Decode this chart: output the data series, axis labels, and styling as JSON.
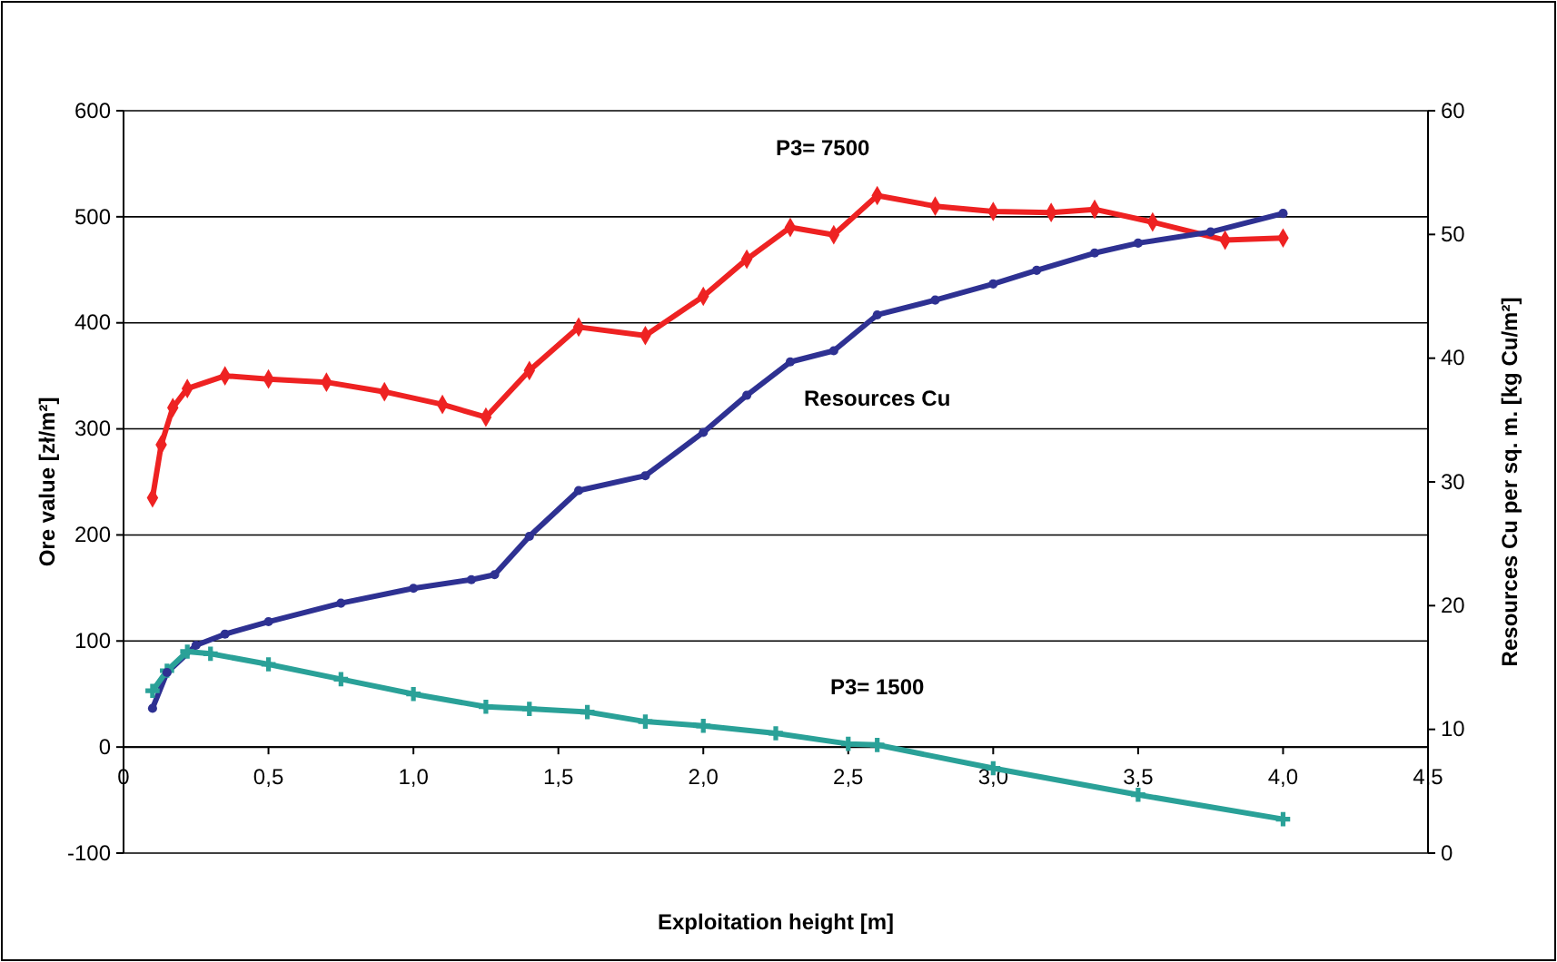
{
  "chart_data": {
    "type": "line",
    "xlabel": "Exploitation height [m]",
    "ylabel": "Ore value [zł/m²]",
    "y2label": "Resources Cu per sq. m. [kg Cu/m²]",
    "xlim": [
      0,
      4.5
    ],
    "xticks": [
      0,
      {
        "value": 0.5,
        "label": "0,5"
      },
      {
        "value": 1,
        "label": "1,0"
      },
      {
        "value": 1.5,
        "label": "1,5"
      },
      {
        "value": 2,
        "label": "2,0"
      },
      {
        "value": 2.5,
        "label": "2,5"
      },
      {
        "value": 3,
        "label": "3,0"
      },
      {
        "value": 3.5,
        "label": "3,5"
      },
      {
        "value": 4,
        "label": "4,0"
      },
      {
        "value": 4.5,
        "label": "4,5"
      }
    ],
    "ylim": [
      -100,
      600
    ],
    "yticks": [
      -100,
      0,
      100,
      200,
      300,
      400,
      500,
      600
    ],
    "y2lim": [
      0,
      60
    ],
    "y2ticks": [
      0,
      10,
      20,
      30,
      40,
      50,
      60
    ],
    "grid": "y",
    "series": [
      {
        "name": "P3= 7500",
        "color": "#ee2222",
        "marker": "diamond",
        "x": [
          0.1,
          0.13,
          0.17,
          0.22,
          0.35,
          0.5,
          0.7,
          0.9,
          1.1,
          1.25,
          1.4,
          1.57,
          1.8,
          2.0,
          2.15,
          2.3,
          2.45,
          2.6,
          2.8,
          3.0,
          3.2,
          3.35,
          3.55,
          3.8,
          4.0
        ],
        "values": [
          235,
          285,
          320,
          338,
          350,
          347,
          344,
          335,
          323,
          311,
          355,
          396,
          388,
          425,
          460,
          490,
          483,
          520,
          510,
          505,
          504,
          507,
          495,
          478,
          480
        ]
      },
      {
        "name": "Resources Cu",
        "color": "#2e3192",
        "marker": "circle",
        "axis": "y2",
        "x": [
          0.1,
          0.15,
          0.25,
          0.35,
          0.5,
          0.75,
          1.0,
          1.2,
          1.28,
          1.4,
          1.57,
          1.8,
          2.0,
          2.15,
          2.3,
          2.45,
          2.6,
          2.8,
          3.0,
          3.15,
          3.35,
          3.5,
          3.75,
          4.0
        ],
        "values": [
          11.7,
          14.6,
          16.8,
          17.7,
          18.7,
          20.2,
          21.4,
          22.1,
          22.5,
          25.6,
          29.3,
          30.5,
          34.0,
          37.0,
          39.7,
          40.6,
          43.5,
          44.7,
          46.0,
          47.1,
          48.5,
          49.3,
          50.2,
          51.7
        ]
      },
      {
        "name": "P3= 1500",
        "color": "#2aa198",
        "marker": "cross",
        "x": [
          0.1,
          0.15,
          0.22,
          0.3,
          0.5,
          0.75,
          1.0,
          1.25,
          1.4,
          1.6,
          1.8,
          2.0,
          2.25,
          2.5,
          2.6,
          3.0,
          3.5,
          4.0
        ],
        "values": [
          53,
          72,
          90,
          88,
          78,
          64,
          50,
          38,
          36,
          33,
          24,
          20,
          13,
          3,
          2,
          -20,
          -45,
          -68
        ]
      }
    ]
  }
}
